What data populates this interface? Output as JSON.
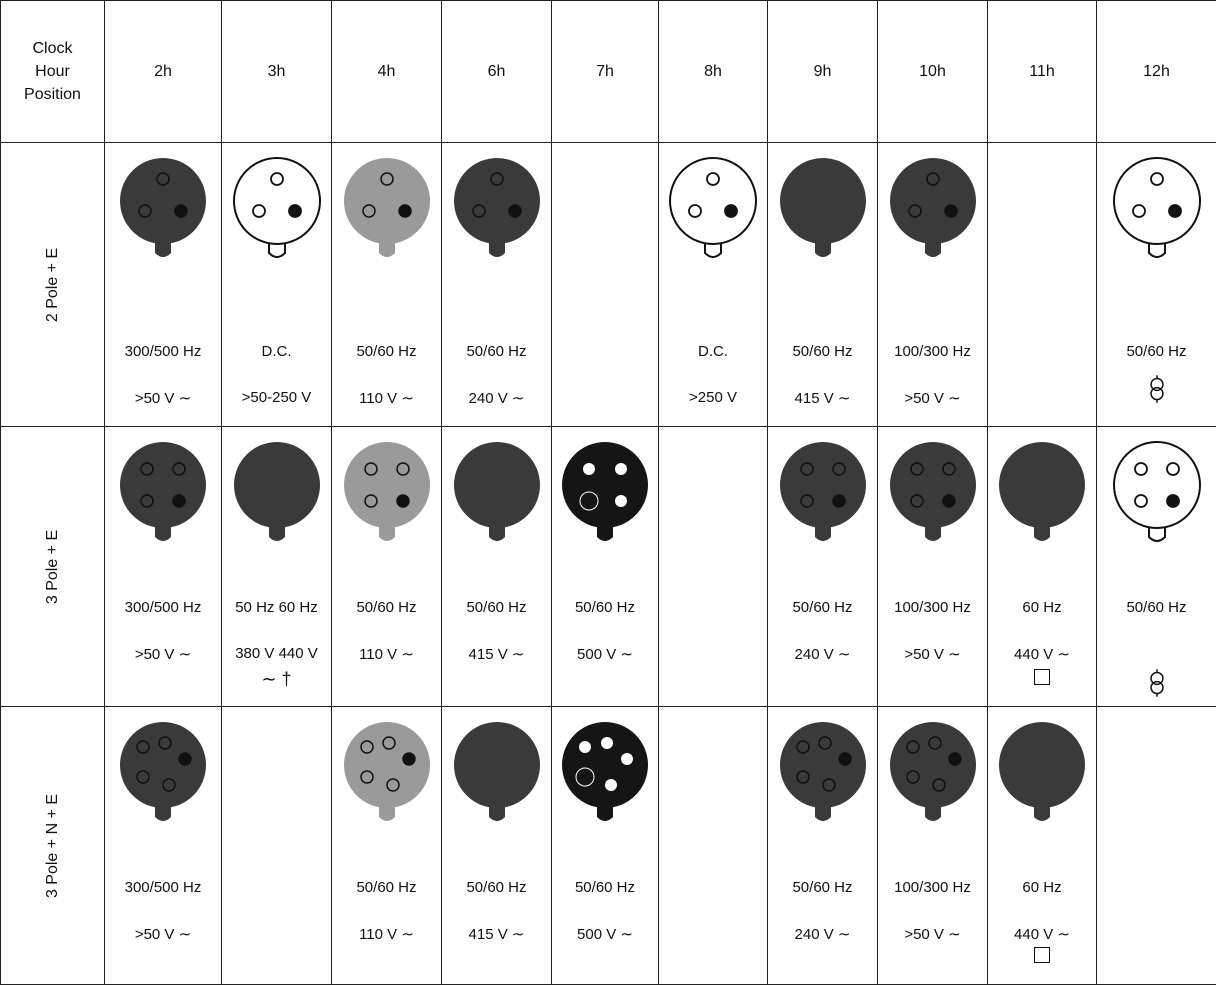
{
  "header": {
    "corner": [
      "Clock",
      "Hour",
      "Position"
    ],
    "hours": [
      "2h",
      "3h",
      "4h",
      "6h",
      "7h",
      "8h",
      "9h",
      "10h",
      "11h",
      "12h"
    ]
  },
  "rows": [
    {
      "label": "2 Pole + E",
      "cells": [
        {
          "plug": {
            "body": "dark",
            "holes": 3
          },
          "freq": "300/500 Hz",
          "volt": ">50 V ∼"
        },
        {
          "plug": {
            "body": "white",
            "holes": 3
          },
          "freq": "D.C.",
          "volt": ">50-250 V"
        },
        {
          "plug": {
            "body": "grey",
            "holes": 3
          },
          "freq": "50/60 Hz",
          "volt": "110 V ∼"
        },
        {
          "plug": {
            "body": "dark",
            "holes": 3
          },
          "freq": "50/60 Hz",
          "volt": "240 V ∼"
        },
        {},
        {
          "plug": {
            "body": "white",
            "holes": 3
          },
          "freq": "D.C.",
          "volt": ">250 V"
        },
        {
          "plug": {
            "body": "dark",
            "holes": 0
          },
          "freq": "50/60 Hz",
          "volt": "415 V ∼"
        },
        {
          "plug": {
            "body": "dark",
            "holes": 3
          },
          "freq": "100/300 Hz",
          "volt": ">50 V ∼"
        },
        {},
        {
          "plug": {
            "body": "white",
            "holes": 3
          },
          "freq": "50/60 Hz",
          "sym": "transformer"
        }
      ]
    },
    {
      "label": "3 Pole + E",
      "cells": [
        {
          "plug": {
            "body": "dark",
            "holes": 4
          },
          "freq": "300/500 Hz",
          "volt": ">50 V ∼"
        },
        {
          "plug": {
            "body": "dark",
            "holes": 0
          },
          "freq": "50 Hz 60 Hz",
          "volt": "380 V 440 V",
          "extra": "∼ †"
        },
        {
          "plug": {
            "body": "grey",
            "holes": 4
          },
          "freq": "50/60 Hz",
          "volt": "110 V ∼"
        },
        {
          "plug": {
            "body": "dark",
            "holes": 0
          },
          "freq": "50/60 Hz",
          "volt": "415 V ∼"
        },
        {
          "plug": {
            "body": "black",
            "holes": 4
          },
          "freq": "50/60 Hz",
          "volt": "500 V ∼"
        },
        {},
        {
          "plug": {
            "body": "dark",
            "holes": 4
          },
          "freq": "50/60 Hz",
          "volt": "240 V ∼"
        },
        {
          "plug": {
            "body": "dark",
            "holes": 4
          },
          "freq": "100/300 Hz",
          "volt": ">50 V ∼"
        },
        {
          "plug": {
            "body": "dark",
            "holes": 0
          },
          "freq": "60 Hz",
          "volt": "440 V ∼",
          "sym": "box"
        },
        {
          "plug": {
            "body": "white",
            "holes": 4
          },
          "freq": "50/60 Hz",
          "sym": "transformer"
        }
      ]
    },
    {
      "label": "3 Pole + N + E",
      "cells": [
        {
          "plug": {
            "body": "dark",
            "holes": 5
          },
          "freq": "300/500 Hz",
          "volt": ">50 V ∼"
        },
        {},
        {
          "plug": {
            "body": "grey",
            "holes": 5
          },
          "freq": "50/60 Hz",
          "volt": "110 V ∼"
        },
        {
          "plug": {
            "body": "dark",
            "holes": 0
          },
          "freq": "50/60 Hz",
          "volt": "415 V ∼"
        },
        {
          "plug": {
            "body": "black",
            "holes": 5
          },
          "freq": "50/60 Hz",
          "volt": "500 V ∼"
        },
        {},
        {
          "plug": {
            "body": "dark",
            "holes": 5
          },
          "freq": "50/60 Hz",
          "volt": "240 V ∼"
        },
        {
          "plug": {
            "body": "dark",
            "holes": 5
          },
          "freq": "100/300 Hz",
          "volt": ">50 V ∼"
        },
        {
          "plug": {
            "body": "dark",
            "holes": 0
          },
          "freq": "60 Hz",
          "volt": "440 V ∼",
          "sym": "box"
        },
        {}
      ]
    }
  ],
  "colors": {
    "dark": "#3a3a3a",
    "grey": "#9a9a9a",
    "white": "#ffffff",
    "black": "#151515",
    "line": "#222222"
  }
}
